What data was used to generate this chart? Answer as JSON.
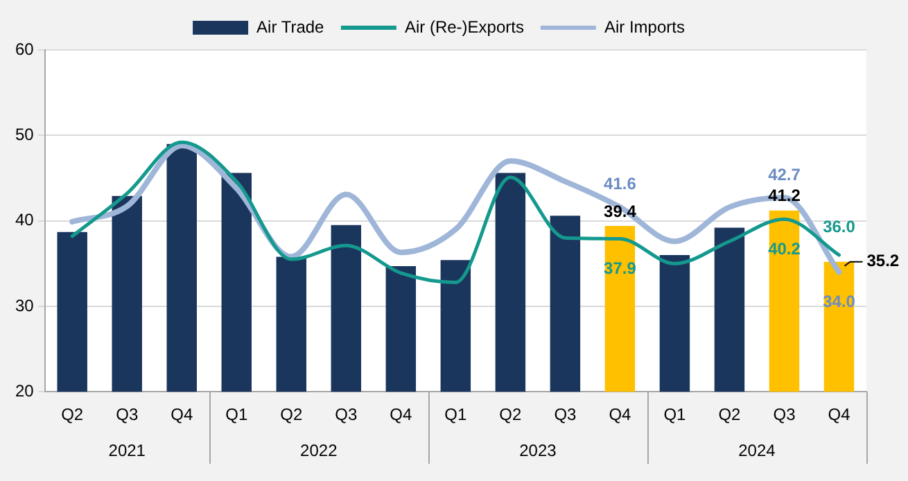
{
  "chart_data": {
    "type": "bar",
    "categories": [
      "Q2",
      "Q3",
      "Q4",
      "Q1",
      "Q2",
      "Q3",
      "Q4",
      "Q1",
      "Q2",
      "Q3",
      "Q4",
      "Q1",
      "Q2",
      "Q3",
      "Q4"
    ],
    "series": [
      {
        "name": "Air Trade",
        "colors": [
          "#1b365d",
          "#1b365d",
          "#1b365d",
          "#1b365d",
          "#1b365d",
          "#1b365d",
          "#1b365d",
          "#1b365d",
          "#1b365d",
          "#1b365d",
          "#ffc000",
          "#1b365d",
          "#1b365d",
          "#ffc000",
          "#ffc000"
        ],
        "values": [
          38.7,
          42.9,
          49.0,
          45.6,
          35.8,
          39.5,
          34.7,
          35.4,
          45.6,
          40.6,
          39.4,
          36.0,
          39.2,
          41.2,
          35.2
        ],
        "value_labels": [
          null,
          null,
          null,
          null,
          null,
          null,
          null,
          null,
          null,
          null,
          "39.4",
          null,
          null,
          "41.2",
          "35.2"
        ]
      },
      {
        "name": "Air (Re-)Exports",
        "type": "line",
        "color": "#14998e",
        "values": [
          38.2,
          43.2,
          49.2,
          44.6,
          35.5,
          37.1,
          33.9,
          32.8,
          45.1,
          38.0,
          37.9,
          35.0,
          37.6,
          40.2,
          36.0
        ],
        "value_labels": [
          null,
          null,
          null,
          null,
          null,
          null,
          null,
          null,
          null,
          null,
          "37.9",
          null,
          null,
          "40.2",
          "36.0"
        ]
      },
      {
        "name": "Air Imports",
        "type": "line",
        "color": "#9fb6d8",
        "values": [
          39.9,
          41.7,
          48.8,
          43.8,
          35.8,
          43.1,
          36.3,
          39.0,
          47.0,
          44.6,
          41.6,
          37.6,
          41.6,
          42.7,
          34.0
        ],
        "value_labels": [
          null,
          null,
          null,
          null,
          null,
          null,
          null,
          null,
          null,
          null,
          "41.6",
          null,
          null,
          "42.7",
          "34.0"
        ]
      }
    ],
    "ylim": [
      20,
      60
    ],
    "yticks": [
      20,
      30,
      40,
      50,
      60
    ],
    "grid": "y",
    "legend": "top",
    "marker": "none",
    "annotations": [
      "2021",
      "2022",
      "2023",
      "2024"
    ]
  }
}
